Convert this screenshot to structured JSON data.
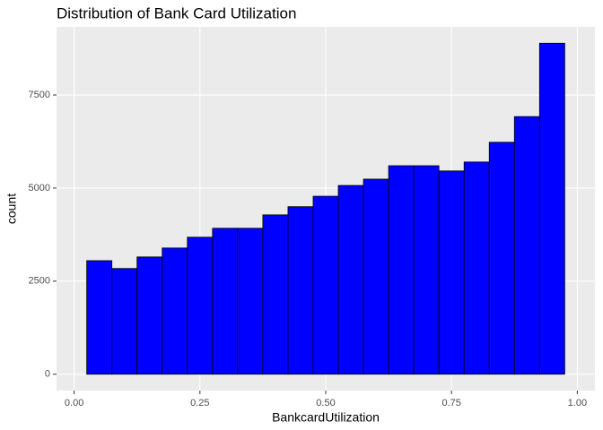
{
  "chart_data": {
    "type": "histogram",
    "title": "Distribution of Bank Card Utilization",
    "x_label": "BankcardUtilization",
    "y_label": "count",
    "bins": [
      0.025,
      0.075,
      0.125,
      0.175,
      0.225,
      0.275,
      0.325,
      0.375,
      0.425,
      0.475,
      0.525,
      0.575,
      0.625,
      0.675,
      0.725,
      0.775,
      0.825,
      0.875,
      0.925,
      0.975
    ],
    "values": [
      3050,
      2840,
      3150,
      3390,
      3680,
      3920,
      3920,
      4280,
      4500,
      4780,
      5070,
      5240,
      5600,
      5600,
      5460,
      5700,
      6230,
      6920,
      8890
    ],
    "color": "#0000ff",
    "edge_color": "#000000",
    "xlim": [
      -0.035,
      1.035
    ],
    "ylim": [
      -440,
      9330
    ],
    "xticks": [
      {
        "value": 0,
        "label": "0.00"
      },
      {
        "value": 0.25,
        "label": "0.25"
      },
      {
        "value": 0.5,
        "label": "0.50"
      },
      {
        "value": 0.75,
        "label": "0.75"
      },
      {
        "value": 1,
        "label": "1.00"
      }
    ],
    "yticks": [
      0,
      2500,
      5000,
      7500
    ],
    "grid": true
  }
}
